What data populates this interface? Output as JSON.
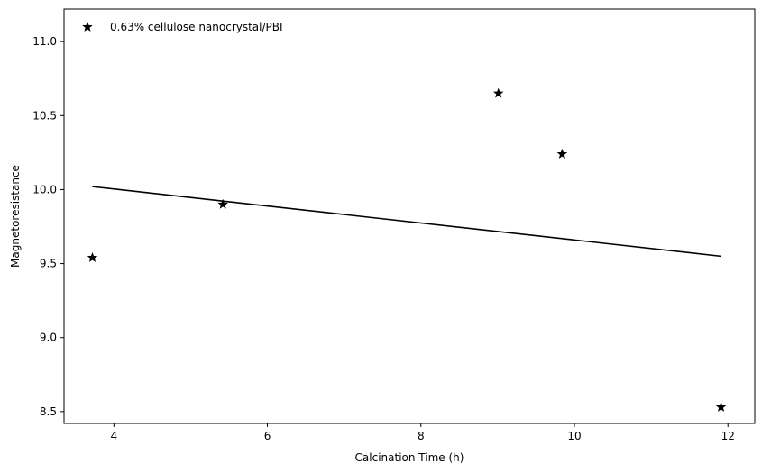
{
  "chart_data": {
    "type": "scatter",
    "xlabel": "Calcination Time (h)",
    "ylabel": "Magnetoresistance",
    "xlim": [
      3.35,
      12.35
    ],
    "ylim": [
      8.42,
      11.22
    ],
    "x_ticks": [
      "4",
      "6",
      "8",
      "10",
      "12"
    ],
    "y_ticks": [
      "8.5",
      "9.0",
      "9.5",
      "10.0",
      "10.5",
      "11.0"
    ],
    "grid": false,
    "legend": {
      "placement": "top-left",
      "entries": [
        "0.63% cellulose nanocrystal/PBI"
      ]
    },
    "series": [
      {
        "name": "0.63% cellulose nanocrystal/PBI",
        "marker": "star",
        "color": "#000000",
        "x": [
          3.72,
          5.42,
          9.01,
          9.84,
          11.91
        ],
        "y": [
          9.54,
          9.9,
          10.65,
          10.24,
          8.53
        ]
      }
    ],
    "trend_line": {
      "color": "#000000",
      "x": [
        3.72,
        11.91
      ],
      "y": [
        10.02,
        9.55
      ]
    }
  }
}
